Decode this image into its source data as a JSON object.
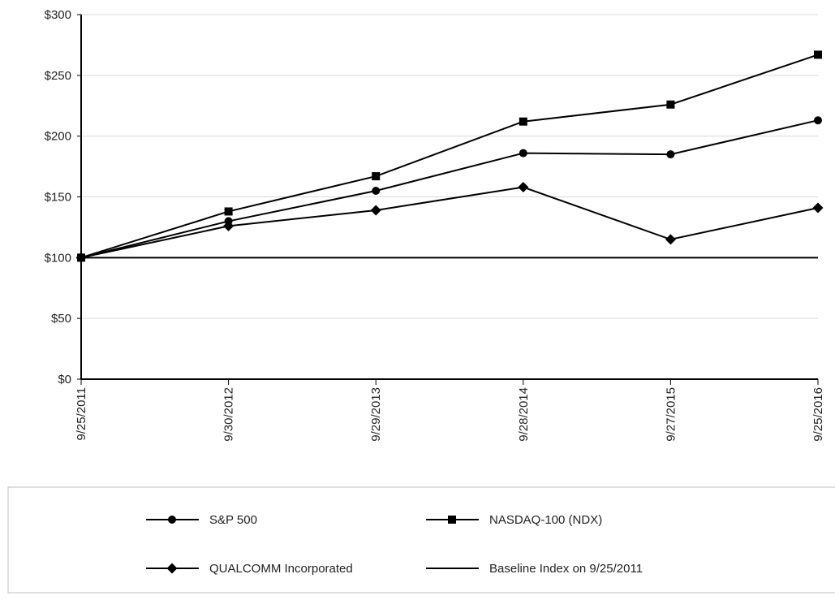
{
  "chart_data": {
    "type": "line",
    "title": "",
    "xlabel": "",
    "ylabel": "",
    "categories": [
      "9/25/2011",
      "9/30/2012",
      "9/29/2013",
      "9/28/2014",
      "9/27/2015",
      "9/25/2016"
    ],
    "y_tick_labels": [
      "$0",
      "$50",
      "$100",
      "$150",
      "$200",
      "$250",
      "$300"
    ],
    "ylim": [
      0,
      300
    ],
    "y_ticks": [
      0,
      50,
      100,
      150,
      200,
      250,
      300
    ],
    "grid": true,
    "legend_position": "bottom",
    "series": [
      {
        "name": "S&P 500",
        "marker": "circle",
        "values": [
          100,
          130,
          155,
          186,
          185,
          213
        ]
      },
      {
        "name": "NASDAQ-100 (NDX)",
        "marker": "square",
        "values": [
          100,
          138,
          167,
          212,
          226,
          267
        ]
      },
      {
        "name": "QUALCOMM Incorporated",
        "marker": "diamond",
        "values": [
          100,
          126,
          139,
          158,
          115,
          141
        ]
      },
      {
        "name": "Baseline Index on 9/25/2011",
        "marker": "none",
        "values": [
          100,
          100,
          100,
          100,
          100,
          100
        ]
      }
    ],
    "colors": {
      "line": "#000000",
      "grid": "#d9d9d9",
      "legend_border": "#bfbfbf"
    }
  }
}
